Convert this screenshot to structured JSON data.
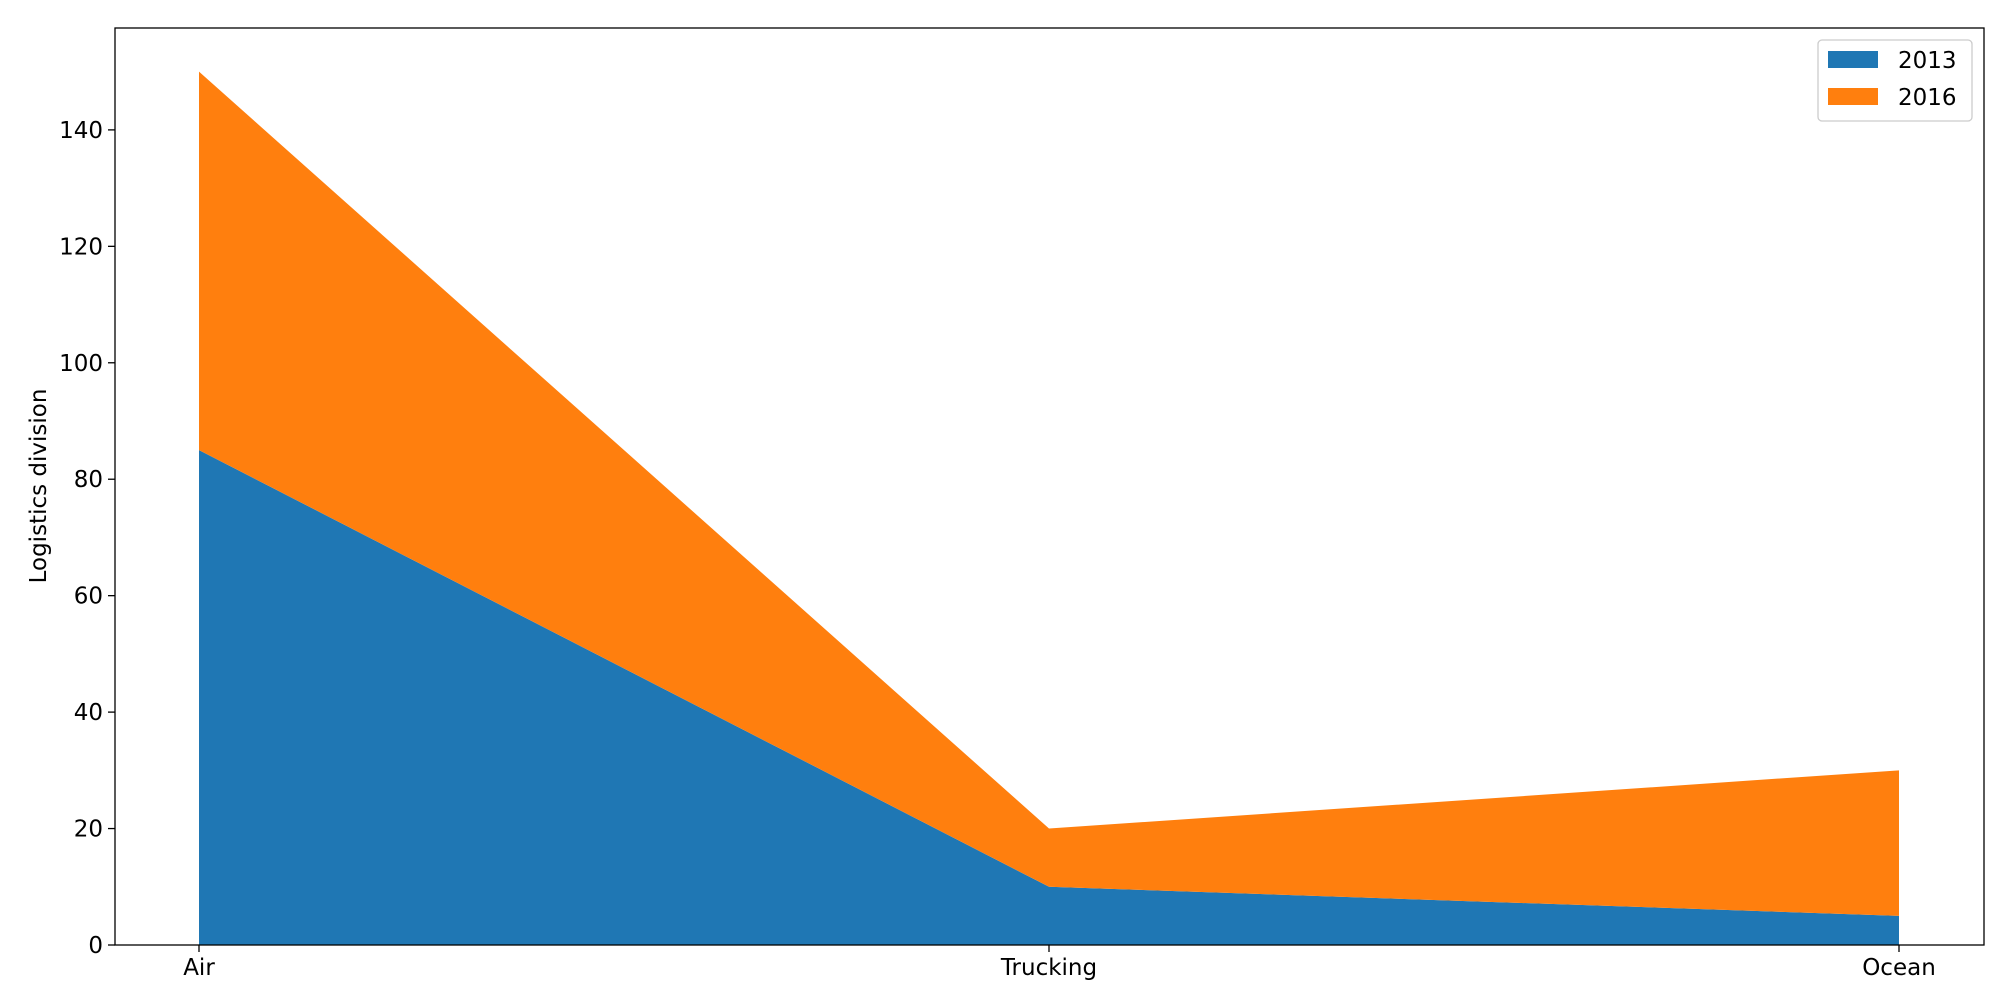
{
  "chart_data": {
    "type": "area",
    "stacked": true,
    "categories": [
      "Air",
      "Trucking",
      "Ocean"
    ],
    "series": [
      {
        "name": "2013",
        "values": [
          85,
          10,
          5
        ],
        "color": "#1f77b4"
      },
      {
        "name": "2016",
        "values": [
          65,
          10,
          25
        ],
        "color": "#ff7f0e"
      }
    ],
    "xlabel": "",
    "ylabel": "Logistics division",
    "ylim": [
      0,
      157.5
    ],
    "yticks": [
      0,
      20,
      40,
      60,
      80,
      100,
      120,
      140
    ],
    "grid": false,
    "legend": "top-right"
  }
}
